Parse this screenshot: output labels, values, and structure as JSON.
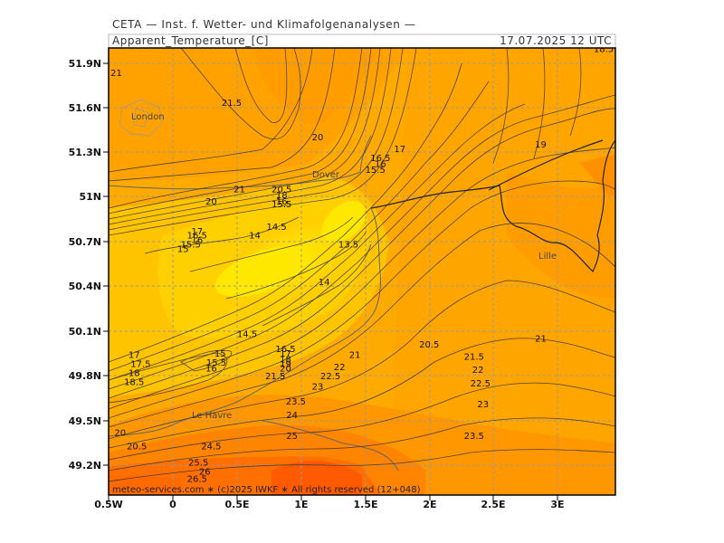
{
  "header": {
    "provider": "CETA — Inst. f. Wetter- und Klimafolgenanalysen —",
    "parameter": "Apparent_Temperature_[C]",
    "valid_time": "17.07.2025 12 UTC"
  },
  "axes": {
    "lat_labels": [
      "51.9N",
      "51.6N",
      "51.3N",
      "51N",
      "50.7N",
      "50.4N",
      "50.1N",
      "49.8N",
      "49.5N",
      "49.2N"
    ],
    "lon_labels": [
      "0.5W",
      "0",
      "0.5E",
      "1E",
      "1.5E",
      "2E",
      "2.5E",
      "3E"
    ]
  },
  "cities": {
    "london": "London",
    "dover": "Dover",
    "lille": "Lille",
    "le_havre": "Le Havre"
  },
  "credit": "meteo-services.com ∗ (c)2025 IWKF ∗ All rights reserved (12+048)",
  "contour_labels": [
    {
      "text": "21",
      "lon": -0.44,
      "lat": 51.84
    },
    {
      "text": "21.5",
      "lon": 0.46,
      "lat": 51.64
    },
    {
      "text": "20",
      "lon": 1.13,
      "lat": 51.41
    },
    {
      "text": "17",
      "lon": 1.77,
      "lat": 51.33
    },
    {
      "text": "16.5",
      "lon": 1.62,
      "lat": 51.27
    },
    {
      "text": "16",
      "lon": 1.62,
      "lat": 51.23
    },
    {
      "text": "15.5",
      "lon": 1.58,
      "lat": 51.19
    },
    {
      "text": "19",
      "lon": 2.87,
      "lat": 51.36
    },
    {
      "text": "18.5",
      "lon": 3.36,
      "lat": 52.0
    },
    {
      "text": "21",
      "lon": 0.52,
      "lat": 51.06
    },
    {
      "text": "20",
      "lon": 0.3,
      "lat": 50.98
    },
    {
      "text": "20.5",
      "lon": 0.85,
      "lat": 51.06
    },
    {
      "text": "18",
      "lon": 0.85,
      "lat": 51.02
    },
    {
      "text": "16",
      "lon": 0.85,
      "lat": 50.98
    },
    {
      "text": "15.5",
      "lon": 0.85,
      "lat": 50.96
    },
    {
      "text": "14.5",
      "lon": 0.81,
      "lat": 50.81
    },
    {
      "text": "14",
      "lon": 0.64,
      "lat": 50.75
    },
    {
      "text": "13.5",
      "lon": 1.37,
      "lat": 50.69
    },
    {
      "text": "14",
      "lon": 1.18,
      "lat": 50.44
    },
    {
      "text": "17",
      "lon": 0.19,
      "lat": 50.78
    },
    {
      "text": "16.5",
      "lon": 0.19,
      "lat": 50.75
    },
    {
      "text": "16",
      "lon": 0.19,
      "lat": 50.72
    },
    {
      "text": "15.5",
      "lon": 0.14,
      "lat": 50.69
    },
    {
      "text": "15",
      "lon": 0.08,
      "lat": 50.66
    },
    {
      "text": "14.5",
      "lon": 0.58,
      "lat": 50.09
    },
    {
      "text": "15",
      "lon": 0.37,
      "lat": 49.96
    },
    {
      "text": "15.5",
      "lon": 0.34,
      "lat": 49.9
    },
    {
      "text": "16",
      "lon": 0.3,
      "lat": 49.86
    },
    {
      "text": "16.5",
      "lon": 0.88,
      "lat": 49.99
    },
    {
      "text": "17",
      "lon": 0.88,
      "lat": 49.96
    },
    {
      "text": "18",
      "lon": 0.88,
      "lat": 49.92
    },
    {
      "text": "19",
      "lon": 0.88,
      "lat": 49.89
    },
    {
      "text": "20",
      "lon": 0.88,
      "lat": 49.86
    },
    {
      "text": "21.5",
      "lon": 0.8,
      "lat": 49.81
    },
    {
      "text": "21",
      "lon": 1.42,
      "lat": 49.95
    },
    {
      "text": "22",
      "lon": 1.3,
      "lat": 49.87
    },
    {
      "text": "22.5",
      "lon": 1.23,
      "lat": 49.81
    },
    {
      "text": "23",
      "lon": 1.13,
      "lat": 49.74
    },
    {
      "text": "23.5",
      "lon": 0.96,
      "lat": 49.64
    },
    {
      "text": "24",
      "lon": 0.93,
      "lat": 49.55
    },
    {
      "text": "25",
      "lon": 0.93,
      "lat": 49.41
    },
    {
      "text": "24.5",
      "lon": 0.3,
      "lat": 49.34
    },
    {
      "text": "20.5",
      "lon": 2.0,
      "lat": 50.02
    },
    {
      "text": "21",
      "lon": 2.87,
      "lat": 50.06
    },
    {
      "text": "21.5",
      "lon": 2.35,
      "lat": 49.94
    },
    {
      "text": "22",
      "lon": 2.38,
      "lat": 49.85
    },
    {
      "text": "22.5",
      "lon": 2.4,
      "lat": 49.76
    },
    {
      "text": "23",
      "lon": 2.42,
      "lat": 49.62
    },
    {
      "text": "23.5",
      "lon": 2.35,
      "lat": 49.41
    },
    {
      "text": "17",
      "lon": -0.3,
      "lat": 49.95
    },
    {
      "text": "17.5",
      "lon": -0.25,
      "lat": 49.89
    },
    {
      "text": "18",
      "lon": -0.3,
      "lat": 49.83
    },
    {
      "text": "18.5",
      "lon": -0.3,
      "lat": 49.77
    },
    {
      "text": "20",
      "lon": -0.41,
      "lat": 49.43
    },
    {
      "text": "20.5",
      "lon": -0.28,
      "lat": 49.34
    },
    {
      "text": "25.5",
      "lon": 0.2,
      "lat": 49.23
    },
    {
      "text": "26",
      "lon": 0.25,
      "lat": 49.17
    },
    {
      "text": "26.5",
      "lon": 0.19,
      "lat": 49.12
    }
  ]
}
